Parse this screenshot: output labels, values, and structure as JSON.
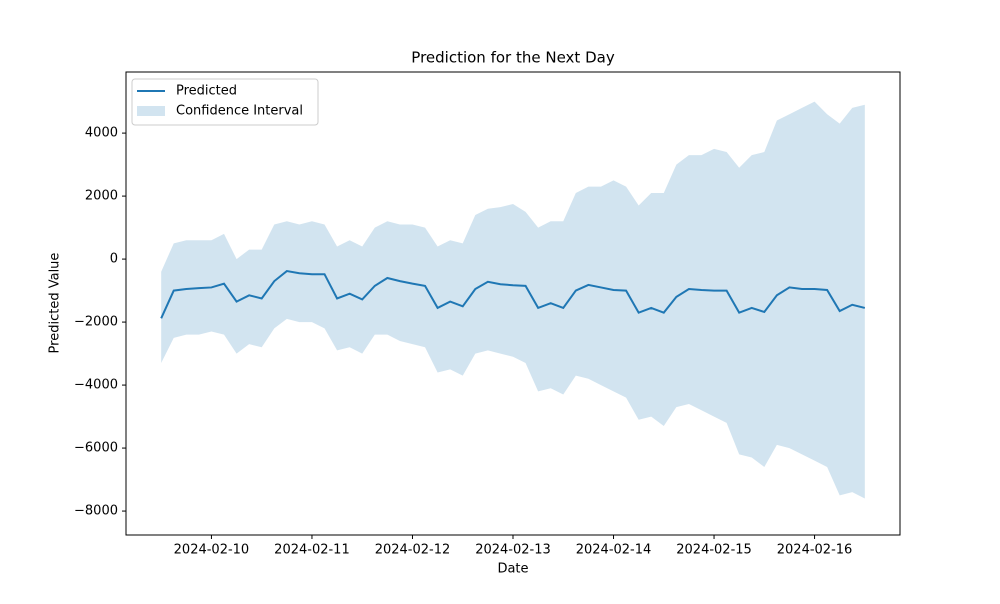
{
  "chart_data": {
    "type": "line",
    "title": "Prediction for the Next Day",
    "x_label": "Date",
    "y_label": "Predicted Value",
    "x": [
      "2024-02-09 12:00",
      "2024-02-09 15:00",
      "2024-02-09 18:00",
      "2024-02-09 21:00",
      "2024-02-10 00:00",
      "2024-02-10 03:00",
      "2024-02-10 06:00",
      "2024-02-10 09:00",
      "2024-02-10 12:00",
      "2024-02-10 15:00",
      "2024-02-10 18:00",
      "2024-02-10 21:00",
      "2024-02-11 00:00",
      "2024-02-11 03:00",
      "2024-02-11 06:00",
      "2024-02-11 09:00",
      "2024-02-11 12:00",
      "2024-02-11 15:00",
      "2024-02-11 18:00",
      "2024-02-11 21:00",
      "2024-02-12 00:00",
      "2024-02-12 03:00",
      "2024-02-12 06:00",
      "2024-02-12 09:00",
      "2024-02-12 12:00",
      "2024-02-12 15:00",
      "2024-02-12 18:00",
      "2024-02-12 21:00",
      "2024-02-13 00:00",
      "2024-02-13 03:00",
      "2024-02-13 06:00",
      "2024-02-13 09:00",
      "2024-02-13 12:00",
      "2024-02-13 15:00",
      "2024-02-13 18:00",
      "2024-02-13 21:00",
      "2024-02-14 00:00",
      "2024-02-14 03:00",
      "2024-02-14 06:00",
      "2024-02-14 09:00",
      "2024-02-14 12:00",
      "2024-02-14 15:00",
      "2024-02-14 18:00",
      "2024-02-14 21:00",
      "2024-02-15 00:00",
      "2024-02-15 03:00",
      "2024-02-15 06:00",
      "2024-02-15 09:00",
      "2024-02-15 12:00",
      "2024-02-15 15:00",
      "2024-02-15 18:00",
      "2024-02-15 21:00",
      "2024-02-16 00:00",
      "2024-02-16 03:00",
      "2024-02-16 06:00",
      "2024-02-16 09:00",
      "2024-02-16 12:00"
    ],
    "series": [
      {
        "name": "Predicted",
        "color": "#1f77b4",
        "values": [
          -1880,
          -1000,
          -950,
          -920,
          -900,
          -780,
          -1350,
          -1150,
          -1250,
          -700,
          -380,
          -450,
          -480,
          -480,
          -1250,
          -1100,
          -1280,
          -850,
          -600,
          -700,
          -780,
          -850,
          -1550,
          -1350,
          -1500,
          -950,
          -720,
          -800,
          -830,
          -850,
          -1550,
          -1400,
          -1550,
          -1000,
          -820,
          -900,
          -980,
          -1000,
          -1700,
          -1550,
          -1700,
          -1200,
          -950,
          -980,
          -1000,
          -1000,
          -1700,
          -1550,
          -1680,
          -1150,
          -900,
          -950,
          -950,
          -980,
          -1650,
          -1450,
          -1550
        ]
      }
    ],
    "interval": {
      "name": "Confidence Interval",
      "color": "#1f77b4",
      "alpha": 0.2,
      "lower": [
        -3300,
        -2500,
        -2400,
        -2400,
        -2300,
        -2400,
        -3000,
        -2700,
        -2800,
        -2200,
        -1900,
        -2000,
        -2000,
        -2200,
        -2900,
        -2800,
        -3000,
        -2400,
        -2400,
        -2600,
        -2700,
        -2800,
        -3600,
        -3500,
        -3700,
        -3000,
        -2900,
        -3000,
        -3100,
        -3300,
        -4200,
        -4100,
        -4300,
        -3700,
        -3800,
        -4000,
        -4200,
        -4400,
        -5100,
        -5000,
        -5300,
        -4700,
        -4600,
        -4800,
        -5000,
        -5200,
        -6200,
        -6300,
        -6600,
        -5900,
        -6000,
        -6200,
        -6400,
        -6600,
        -7500,
        -7400,
        -7600
      ],
      "upper": [
        -400,
        500,
        600,
        600,
        600,
        800,
        0,
        300,
        300,
        1100,
        1200,
        1100,
        1200,
        1100,
        400,
        600,
        400,
        1000,
        1200,
        1100,
        1100,
        1000,
        400,
        600,
        500,
        1400,
        1600,
        1650,
        1750,
        1500,
        1000,
        1200,
        1200,
        2100,
        2300,
        2300,
        2500,
        2300,
        1700,
        2100,
        2100,
        3000,
        3300,
        3300,
        3500,
        3400,
        2900,
        3300,
        3400,
        4400,
        4600,
        4800,
        5000,
        4600,
        4300,
        4800,
        4900
      ]
    },
    "xlim": [
      "2024-02-09 03:36",
      "2024-02-16 20:24"
    ],
    "xticks": [
      "2024-02-10",
      "2024-02-11",
      "2024-02-12",
      "2024-02-13",
      "2024-02-14",
      "2024-02-15",
      "2024-02-16"
    ],
    "ylim": [
      -8760,
      5940
    ],
    "yticks": [
      {
        "value": -8000,
        "label": "−8000"
      },
      {
        "value": -6000,
        "label": "−6000"
      },
      {
        "value": -4000,
        "label": "−4000"
      },
      {
        "value": -2000,
        "label": "−2000"
      },
      0,
      2000,
      4000
    ],
    "legend": "upper left"
  }
}
